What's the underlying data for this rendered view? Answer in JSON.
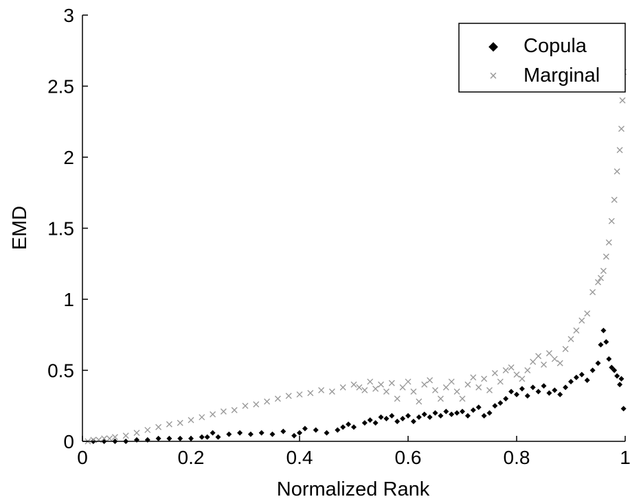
{
  "chart_data": {
    "type": "scatter",
    "title": "",
    "xlabel": "Normalized Rank",
    "ylabel": "EMD",
    "xlim": [
      0,
      1
    ],
    "ylim": [
      0,
      3
    ],
    "xticks": [
      0,
      0.2,
      0.4,
      0.6,
      0.8,
      1
    ],
    "xtick_labels": [
      "0",
      "0.2",
      "0.4",
      "0.6",
      "0.8",
      "1"
    ],
    "yticks": [
      0,
      0.5,
      1,
      1.5,
      2,
      2.5,
      3
    ],
    "ytick_labels": [
      "0",
      "0.5",
      "1",
      "1.5",
      "2",
      "2.5",
      "3"
    ],
    "grid": false,
    "legend_position": "top-right",
    "series": [
      {
        "name": "Copula",
        "marker": "diamond",
        "color": "#000000",
        "points": [
          [
            0.02,
            0.0
          ],
          [
            0.04,
            0.0
          ],
          [
            0.06,
            0.0
          ],
          [
            0.08,
            0.0
          ],
          [
            0.1,
            0.01
          ],
          [
            0.12,
            0.01
          ],
          [
            0.14,
            0.02
          ],
          [
            0.16,
            0.02
          ],
          [
            0.18,
            0.02
          ],
          [
            0.2,
            0.02
          ],
          [
            0.22,
            0.03
          ],
          [
            0.23,
            0.03
          ],
          [
            0.24,
            0.06
          ],
          [
            0.25,
            0.03
          ],
          [
            0.27,
            0.05
          ],
          [
            0.29,
            0.06
          ],
          [
            0.31,
            0.05
          ],
          [
            0.33,
            0.06
          ],
          [
            0.35,
            0.05
          ],
          [
            0.37,
            0.07
          ],
          [
            0.39,
            0.04
          ],
          [
            0.4,
            0.06
          ],
          [
            0.41,
            0.09
          ],
          [
            0.43,
            0.08
          ],
          [
            0.45,
            0.06
          ],
          [
            0.47,
            0.08
          ],
          [
            0.48,
            0.1
          ],
          [
            0.49,
            0.12
          ],
          [
            0.5,
            0.1
          ],
          [
            0.52,
            0.13
          ],
          [
            0.53,
            0.15
          ],
          [
            0.54,
            0.13
          ],
          [
            0.55,
            0.17
          ],
          [
            0.56,
            0.16
          ],
          [
            0.57,
            0.18
          ],
          [
            0.58,
            0.14
          ],
          [
            0.59,
            0.16
          ],
          [
            0.6,
            0.18
          ],
          [
            0.61,
            0.14
          ],
          [
            0.62,
            0.17
          ],
          [
            0.63,
            0.19
          ],
          [
            0.64,
            0.17
          ],
          [
            0.65,
            0.2
          ],
          [
            0.66,
            0.18
          ],
          [
            0.67,
            0.21
          ],
          [
            0.68,
            0.19
          ],
          [
            0.69,
            0.2
          ],
          [
            0.7,
            0.21
          ],
          [
            0.71,
            0.18
          ],
          [
            0.72,
            0.22
          ],
          [
            0.73,
            0.24
          ],
          [
            0.74,
            0.18
          ],
          [
            0.75,
            0.2
          ],
          [
            0.76,
            0.25
          ],
          [
            0.77,
            0.27
          ],
          [
            0.78,
            0.3
          ],
          [
            0.79,
            0.35
          ],
          [
            0.8,
            0.33
          ],
          [
            0.81,
            0.37
          ],
          [
            0.82,
            0.32
          ],
          [
            0.83,
            0.38
          ],
          [
            0.84,
            0.35
          ],
          [
            0.85,
            0.39
          ],
          [
            0.86,
            0.34
          ],
          [
            0.87,
            0.36
          ],
          [
            0.88,
            0.33
          ],
          [
            0.89,
            0.38
          ],
          [
            0.9,
            0.42
          ],
          [
            0.91,
            0.45
          ],
          [
            0.92,
            0.47
          ],
          [
            0.93,
            0.43
          ],
          [
            0.94,
            0.5
          ],
          [
            0.95,
            0.55
          ],
          [
            0.955,
            0.68
          ],
          [
            0.96,
            0.78
          ],
          [
            0.965,
            0.7
          ],
          [
            0.97,
            0.58
          ],
          [
            0.975,
            0.52
          ],
          [
            0.98,
            0.5
          ],
          [
            0.985,
            0.46
          ],
          [
            0.99,
            0.4
          ],
          [
            0.993,
            0.44
          ],
          [
            0.997,
            0.23
          ]
        ]
      },
      {
        "name": "Marginal",
        "marker": "x",
        "color": "#9a9a9a",
        "points": [
          [
            0.01,
            0.0
          ],
          [
            0.02,
            0.01
          ],
          [
            0.03,
            0.01
          ],
          [
            0.04,
            0.02
          ],
          [
            0.05,
            0.02
          ],
          [
            0.06,
            0.03
          ],
          [
            0.08,
            0.04
          ],
          [
            0.1,
            0.06
          ],
          [
            0.12,
            0.08
          ],
          [
            0.14,
            0.1
          ],
          [
            0.16,
            0.12
          ],
          [
            0.18,
            0.13
          ],
          [
            0.2,
            0.15
          ],
          [
            0.22,
            0.17
          ],
          [
            0.24,
            0.19
          ],
          [
            0.26,
            0.21
          ],
          [
            0.28,
            0.22
          ],
          [
            0.3,
            0.25
          ],
          [
            0.32,
            0.26
          ],
          [
            0.34,
            0.28
          ],
          [
            0.36,
            0.3
          ],
          [
            0.38,
            0.32
          ],
          [
            0.4,
            0.33
          ],
          [
            0.42,
            0.34
          ],
          [
            0.44,
            0.36
          ],
          [
            0.46,
            0.35
          ],
          [
            0.48,
            0.38
          ],
          [
            0.5,
            0.4
          ],
          [
            0.51,
            0.38
          ],
          [
            0.52,
            0.36
          ],
          [
            0.53,
            0.42
          ],
          [
            0.54,
            0.37
          ],
          [
            0.55,
            0.4
          ],
          [
            0.56,
            0.35
          ],
          [
            0.57,
            0.41
          ],
          [
            0.58,
            0.3
          ],
          [
            0.59,
            0.38
          ],
          [
            0.6,
            0.42
          ],
          [
            0.61,
            0.35
          ],
          [
            0.62,
            0.28
          ],
          [
            0.63,
            0.4
          ],
          [
            0.64,
            0.43
          ],
          [
            0.65,
            0.36
          ],
          [
            0.66,
            0.3
          ],
          [
            0.67,
            0.38
          ],
          [
            0.68,
            0.42
          ],
          [
            0.69,
            0.35
          ],
          [
            0.7,
            0.3
          ],
          [
            0.71,
            0.4
          ],
          [
            0.72,
            0.45
          ],
          [
            0.73,
            0.38
          ],
          [
            0.74,
            0.44
          ],
          [
            0.75,
            0.36
          ],
          [
            0.76,
            0.48
          ],
          [
            0.77,
            0.42
          ],
          [
            0.78,
            0.5
          ],
          [
            0.79,
            0.52
          ],
          [
            0.8,
            0.47
          ],
          [
            0.81,
            0.44
          ],
          [
            0.82,
            0.5
          ],
          [
            0.83,
            0.56
          ],
          [
            0.84,
            0.6
          ],
          [
            0.85,
            0.54
          ],
          [
            0.86,
            0.62
          ],
          [
            0.87,
            0.58
          ],
          [
            0.88,
            0.55
          ],
          [
            0.89,
            0.65
          ],
          [
            0.9,
            0.72
          ],
          [
            0.91,
            0.78
          ],
          [
            0.92,
            0.85
          ],
          [
            0.93,
            0.9
          ],
          [
            0.94,
            1.05
          ],
          [
            0.95,
            1.12
          ],
          [
            0.955,
            1.15
          ],
          [
            0.96,
            1.2
          ],
          [
            0.965,
            1.3
          ],
          [
            0.97,
            1.4
          ],
          [
            0.975,
            1.55
          ],
          [
            0.98,
            1.7
          ],
          [
            0.985,
            1.9
          ],
          [
            0.99,
            2.05
          ],
          [
            0.993,
            2.2
          ],
          [
            0.995,
            2.4
          ],
          [
            0.997,
            2.6
          ]
        ]
      }
    ]
  }
}
